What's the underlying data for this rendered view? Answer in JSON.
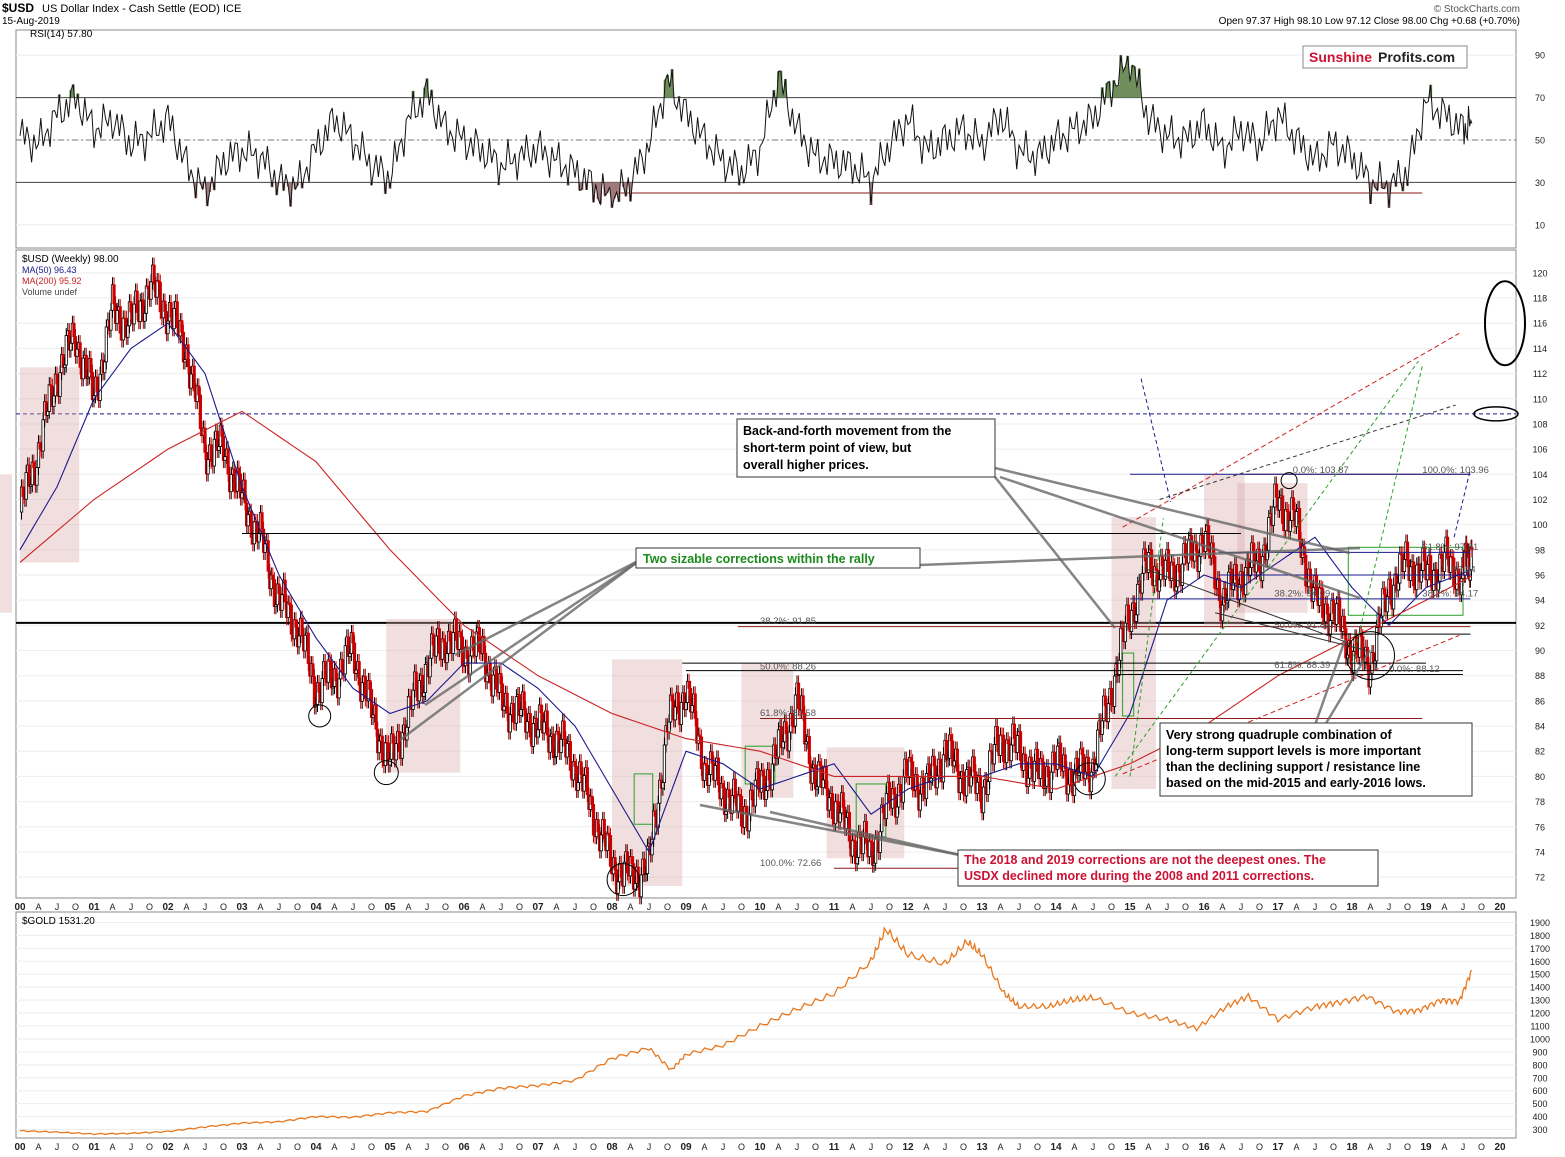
{
  "header": {
    "symbol": "$USD",
    "name": "US Dollar Index - Cash Settle (EOD) ICE",
    "date": "15-Aug-2019",
    "ohlc": "Open 97.37  High 98.10  Low 97.12  Close 98.00  Chg +0.68 (+0.70%)",
    "credit": "© StockCharts.com",
    "brand_a": "Sunshine",
    "brand_b": "Profits.com"
  },
  "colors": {
    "price_up": "#000000",
    "price_down": "#cc0000",
    "ma50": "#1a1a8c",
    "ma200": "#cc2222",
    "gold": "#e8781e",
    "rsi_fill": "#6e8f5c",
    "rsi_low_fill": "#a07a7a",
    "shade": "#d9a8a8",
    "green_box": "#2aa02a",
    "callout_green": "#1a8a1a",
    "callout_red": "#cc1133",
    "brand_red": "#cc1133"
  },
  "chart_data": [
    {
      "id": "rsi",
      "type": "line",
      "legend": "RSI(14) 57.80",
      "ylim": [
        0,
        100
      ],
      "ticks": [
        10,
        30,
        50,
        70,
        90
      ],
      "ref_lines": [
        30,
        50,
        70
      ],
      "series": [
        {
          "x": [
            2000.0,
            2000.25,
            2000.5,
            2000.75,
            2001.0,
            2001.25,
            2001.5,
            2001.75,
            2002.0,
            2002.25,
            2002.5,
            2002.75,
            2003.0,
            2003.25,
            2003.5,
            2003.75,
            2004.0,
            2004.25,
            2004.5,
            2004.75,
            2005.0,
            2005.25,
            2005.5,
            2005.75,
            2006.0,
            2006.25,
            2006.5,
            2006.75,
            2007.0,
            2007.25,
            2007.5,
            2007.75,
            2008.0,
            2008.25,
            2008.5,
            2008.75,
            2009.0,
            2009.25,
            2009.5,
            2009.75,
            2010.0,
            2010.25,
            2010.5,
            2010.75,
            2011.0,
            2011.25,
            2011.5,
            2011.75,
            2012.0,
            2012.25,
            2012.5,
            2012.75,
            2013.0,
            2013.25,
            2013.5,
            2013.75,
            2014.0,
            2014.25,
            2014.5,
            2014.75,
            2015.0,
            2015.25,
            2015.5,
            2015.75,
            2016.0,
            2016.25,
            2016.5,
            2016.75,
            2017.0,
            2017.25,
            2017.5,
            2017.75,
            2018.0,
            2018.25,
            2018.5,
            2018.75,
            2019.0,
            2019.25,
            2019.5,
            2019.62
          ],
          "y": [
            52,
            48,
            62,
            70,
            55,
            60,
            48,
            52,
            60,
            38,
            25,
            40,
            45,
            42,
            30,
            28,
            46,
            60,
            50,
            38,
            32,
            60,
            72,
            55,
            50,
            45,
            38,
            42,
            46,
            40,
            35,
            28,
            22,
            30,
            48,
            78,
            62,
            50,
            40,
            35,
            45,
            80,
            55,
            42,
            40,
            38,
            30,
            48,
            60,
            45,
            50,
            55,
            48,
            62,
            45,
            42,
            50,
            55,
            60,
            75,
            88,
            60,
            52,
            50,
            58,
            45,
            55,
            48,
            62,
            50,
            40,
            48,
            42,
            30,
            28,
            35,
            68,
            62,
            55,
            57.8
          ]
        }
      ]
    },
    {
      "id": "usd",
      "type": "line",
      "title": "$USD (Weekly) 98.00",
      "legend": [
        "$USD (Weekly) 98.00",
        "MA(50) 96.43",
        "MA(200) 95.92",
        "Volume undef"
      ],
      "ylim": [
        70.5,
        121.5
      ],
      "ticks": [
        72,
        74,
        76,
        78,
        80,
        82,
        84,
        86,
        88,
        90,
        92,
        94,
        96,
        98,
        100,
        102,
        104,
        106,
        108,
        110,
        112,
        114,
        116,
        118,
        120
      ],
      "x_labels": [
        "00",
        "A",
        "J",
        "O",
        "01",
        "A",
        "J",
        "O",
        "02",
        "A",
        "J",
        "O",
        "03",
        "A",
        "J",
        "O",
        "04",
        "A",
        "J",
        "O",
        "05",
        "A",
        "J",
        "O",
        "06",
        "A",
        "J",
        "O",
        "07",
        "A",
        "J",
        "O",
        "08",
        "A",
        "J",
        "O",
        "09",
        "A",
        "J",
        "O",
        "10",
        "A",
        "J",
        "O",
        "11",
        "A",
        "J",
        "O",
        "12",
        "A",
        "J",
        "O",
        "13",
        "A",
        "J",
        "O",
        "14",
        "A",
        "J",
        "O",
        "15",
        "A",
        "J",
        "O",
        "16",
        "A",
        "J",
        "O",
        "17",
        "A",
        "J",
        "O",
        "18",
        "A",
        "J",
        "O",
        "19",
        "A",
        "J",
        "O",
        "20"
      ],
      "series": [
        {
          "name": "$USD (Weekly) 98.00",
          "x": [
            2000.0,
            2000.25,
            2000.5,
            2000.75,
            2001.0,
            2001.25,
            2001.5,
            2001.75,
            2002.0,
            2002.25,
            2002.5,
            2002.75,
            2003.0,
            2003.25,
            2003.5,
            2003.75,
            2004.0,
            2004.25,
            2004.5,
            2004.75,
            2005.0,
            2005.25,
            2005.5,
            2005.75,
            2006.0,
            2006.25,
            2006.5,
            2006.75,
            2007.0,
            2007.25,
            2007.5,
            2007.75,
            2008.0,
            2008.25,
            2008.5,
            2008.75,
            2009.0,
            2009.25,
            2009.5,
            2009.75,
            2010.0,
            2010.25,
            2010.5,
            2010.75,
            2011.0,
            2011.25,
            2011.5,
            2011.75,
            2012.0,
            2012.25,
            2012.5,
            2012.75,
            2013.0,
            2013.25,
            2013.5,
            2013.75,
            2014.0,
            2014.25,
            2014.5,
            2014.75,
            2015.0,
            2015.25,
            2015.5,
            2015.75,
            2016.0,
            2016.25,
            2016.5,
            2016.75,
            2017.0,
            2017.25,
            2017.5,
            2017.75,
            2018.0,
            2018.25,
            2018.5,
            2018.75,
            2019.0,
            2019.25,
            2019.5,
            2019.62
          ],
          "y": [
            101,
            106,
            112,
            115,
            110,
            117,
            116,
            119,
            117,
            114,
            106,
            106,
            102,
            99,
            94,
            92,
            87,
            88,
            90,
            85,
            81,
            85,
            89,
            91,
            90,
            90,
            86,
            85,
            84,
            83,
            81,
            77,
            73,
            72,
            73,
            84,
            87,
            81,
            79,
            77,
            79,
            82,
            86,
            80,
            78,
            75,
            74,
            78,
            80,
            79,
            82,
            80,
            79,
            83,
            82,
            80,
            81,
            80,
            81,
            87,
            93,
            97,
            96,
            97,
            99,
            94,
            96,
            97,
            102,
            100,
            94,
            93,
            90,
            89,
            95,
            97,
            96,
            97,
            96,
            98
          ]
        },
        {
          "name": "MA(50) 96.43",
          "x": [
            2000.0,
            2000.5,
            2001.0,
            2001.5,
            2002.0,
            2002.5,
            2003.0,
            2003.5,
            2004.0,
            2004.5,
            2005.0,
            2005.5,
            2006.0,
            2006.5,
            2007.0,
            2007.5,
            2008.0,
            2008.5,
            2009.0,
            2009.5,
            2010.0,
            2010.5,
            2011.0,
            2011.5,
            2012.0,
            2012.5,
            2013.0,
            2013.5,
            2014.0,
            2014.5,
            2015.0,
            2015.5,
            2016.0,
            2016.5,
            2017.0,
            2017.5,
            2018.0,
            2018.5,
            2019.0,
            2019.62
          ],
          "y": [
            98,
            103,
            110,
            114,
            116,
            112,
            103,
            96,
            91,
            87,
            85,
            86,
            89,
            89,
            87,
            84,
            79,
            74,
            82,
            81,
            79,
            80,
            81,
            77,
            79,
            80,
            80,
            81,
            81,
            80,
            85,
            94,
            96,
            95,
            97,
            99,
            95,
            92,
            95,
            96.43
          ]
        },
        {
          "name": "MA(200) 95.92",
          "x": [
            2000.0,
            2001.0,
            2002.0,
            2003.0,
            2004.0,
            2005.0,
            2006.0,
            2007.0,
            2008.0,
            2009.0,
            2010.0,
            2011.0,
            2012.0,
            2013.0,
            2014.0,
            2015.0,
            2016.0,
            2017.0,
            2018.0,
            2019.0,
            2019.62
          ],
          "y": [
            97,
            102,
            106,
            109,
            105,
            98,
            92,
            88,
            85,
            83,
            82,
            80,
            80,
            80,
            79,
            81,
            84,
            88,
            91,
            94,
            95.92
          ]
        }
      ],
      "annotations": {
        "fib_labels": [
          "38.2%: 91.85",
          "50.0%: 88.26",
          "61.8%: 84.58",
          "100.0%: 72.66",
          "0.0%: 103.87",
          "100.0%: 103.96",
          "61.8%: 97.81",
          "96.04",
          "38.2%: 94.17",
          "38.2%: 94.09",
          "50.0%: 91.82",
          "61.8%: 88.39",
          "0.0%: 88.12"
        ],
        "callout_back_forth": [
          "Back-and-forth movement from the",
          "short-term point of view, but",
          "overall higher prices."
        ],
        "callout_corrections": "Two sizable corrections within the rally",
        "callout_support": [
          "Very strong quadruple combination of",
          "long-term support levels is more important",
          "than the declining support / resistance line",
          "based on the mid-2015 and early-2016 lows."
        ],
        "callout_deepest": [
          "The 2018 and 2019 corrections are not the deepest ones. The",
          "USDX declined more during the 2008 and 2011 corrections."
        ]
      }
    },
    {
      "id": "gold",
      "type": "line",
      "legend": "$GOLD 1531.20",
      "ylim": [
        250,
        1950
      ],
      "ticks": [
        300,
        400,
        500,
        600,
        700,
        800,
        900,
        1000,
        1100,
        1200,
        1300,
        1400,
        1500,
        1600,
        1700,
        1800,
        1900
      ],
      "x_labels": [
        "00",
        "A",
        "J",
        "O",
        "01",
        "A",
        "J",
        "O",
        "02",
        "A",
        "J",
        "O",
        "03",
        "A",
        "J",
        "O",
        "04",
        "A",
        "J",
        "O",
        "05",
        "A",
        "J",
        "O",
        "06",
        "A",
        "J",
        "O",
        "07",
        "A",
        "J",
        "O",
        "08",
        "A",
        "J",
        "O",
        "09",
        "A",
        "J",
        "O",
        "10",
        "A",
        "J",
        "O",
        "11",
        "A",
        "J",
        "O",
        "12",
        "A",
        "J",
        "O",
        "13",
        "A",
        "J",
        "O",
        "14",
        "A",
        "J",
        "O",
        "15",
        "A",
        "J",
        "O",
        "16",
        "A",
        "J",
        "O",
        "17",
        "A",
        "J",
        "O",
        "18",
        "A",
        "J",
        "O",
        "19",
        "A",
        "J",
        "O",
        "20"
      ],
      "series": [
        {
          "name": "$GOLD 1531.20",
          "x": [
            2000.0,
            2000.5,
            2001.0,
            2001.5,
            2002.0,
            2002.5,
            2003.0,
            2003.5,
            2004.0,
            2004.5,
            2005.0,
            2005.5,
            2006.0,
            2006.5,
            2007.0,
            2007.5,
            2008.0,
            2008.5,
            2008.8,
            2009.0,
            2009.5,
            2010.0,
            2010.5,
            2011.0,
            2011.5,
            2011.7,
            2012.0,
            2012.5,
            2012.8,
            2013.0,
            2013.3,
            2013.5,
            2013.9,
            2014.2,
            2014.5,
            2015.0,
            2015.5,
            2015.9,
            2016.3,
            2016.6,
            2017.0,
            2017.5,
            2017.8,
            2018.2,
            2018.6,
            2018.9,
            2019.2,
            2019.45,
            2019.62
          ],
          "y": [
            290,
            280,
            265,
            270,
            285,
            320,
            350,
            360,
            400,
            395,
            430,
            440,
            560,
            620,
            640,
            680,
            850,
            930,
            760,
            880,
            950,
            1100,
            1230,
            1350,
            1600,
            1850,
            1650,
            1580,
            1750,
            1650,
            1350,
            1250,
            1250,
            1300,
            1320,
            1200,
            1150,
            1080,
            1250,
            1330,
            1150,
            1250,
            1280,
            1330,
            1210,
            1220,
            1300,
            1290,
            1531.2
          ]
        }
      ]
    }
  ]
}
